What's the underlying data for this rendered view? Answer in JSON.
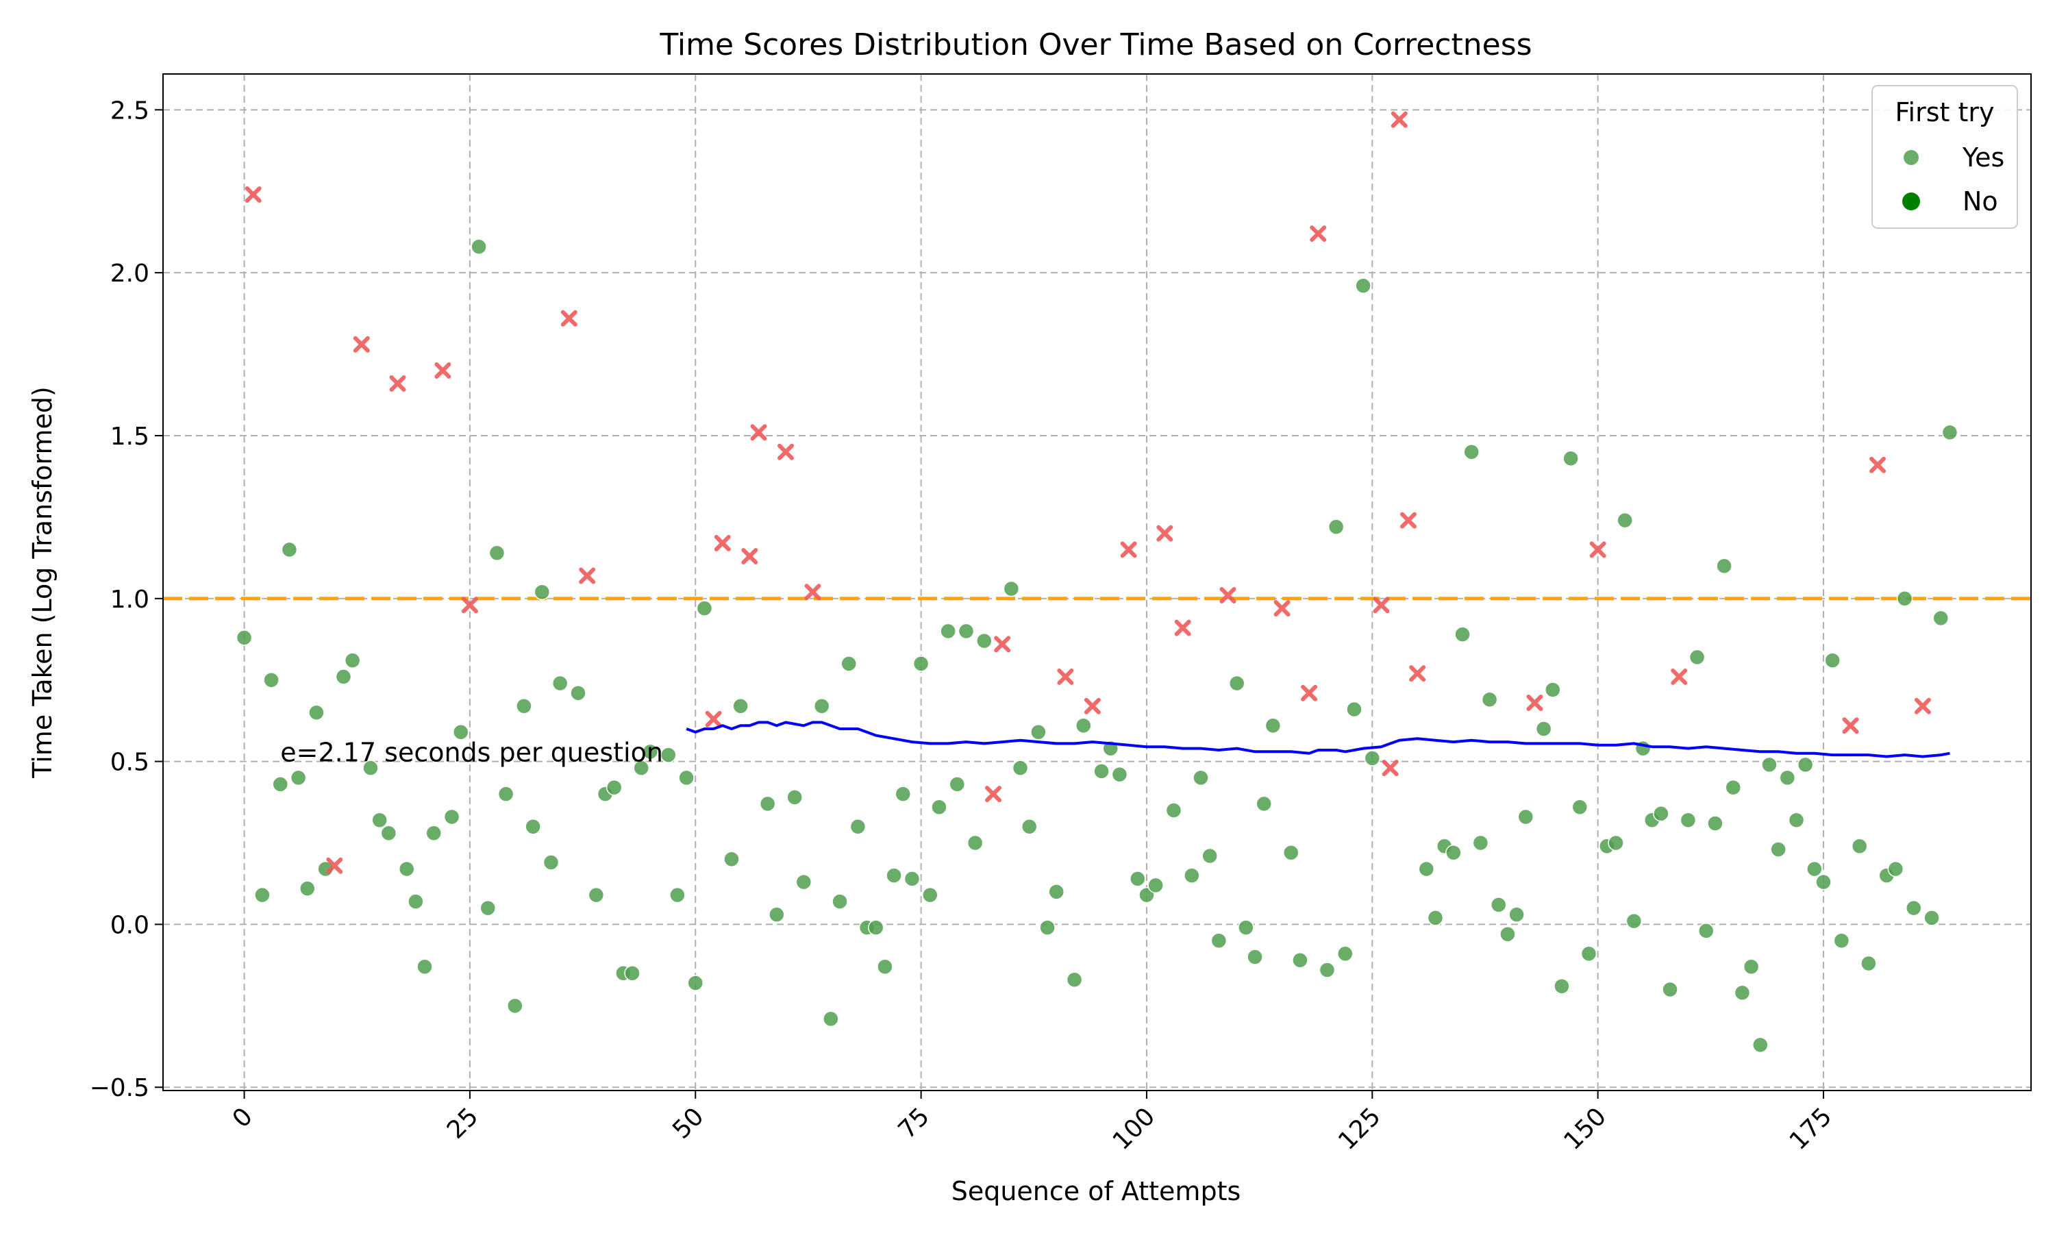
{
  "chart_data": {
    "type": "scatter",
    "title": "Time Scores Distribution Over Time Based on Correctness",
    "xlabel": "Sequence of Attempts",
    "ylabel": "Time Taken (Log Transformed)",
    "xlim": [
      -9,
      198
    ],
    "ylim": [
      -0.51,
      2.61
    ],
    "xticks": [
      0,
      25,
      50,
      75,
      100,
      125,
      150,
      175
    ],
    "yticks": [
      -0.5,
      0.0,
      0.5,
      1.0,
      1.5,
      2.0,
      2.5
    ],
    "ytick_labels": [
      "−0.5",
      "0.0",
      "0.5",
      "1.0",
      "1.5",
      "2.0",
      "2.5"
    ],
    "grid": true,
    "legend": {
      "title": "First try",
      "placement": "top-right",
      "entries": [
        {
          "label": "Yes",
          "color": "#5aa55a",
          "alpha": 0.9
        },
        {
          "label": "No",
          "color": "#008000",
          "alpha": 1.0
        }
      ]
    },
    "colors": {
      "correct": "#4f9f4f",
      "incorrect": "#f05a5a",
      "threshold": "#ffa500",
      "trend": "#0000ff"
    },
    "threshold_line": {
      "y": 1.0
    },
    "annotation": {
      "x": 4,
      "y": 0.5,
      "text": "e=2.17 seconds per question"
    },
    "series": [
      {
        "marker": "circle",
        "points": [
          [
            0,
            0.88
          ],
          [
            2,
            0.09
          ],
          [
            3,
            0.75
          ],
          [
            4,
            0.43
          ],
          [
            5,
            1.15
          ],
          [
            6,
            0.45
          ],
          [
            7,
            0.11
          ],
          [
            8,
            0.65
          ],
          [
            9,
            0.17
          ],
          [
            11,
            0.76
          ],
          [
            12,
            0.81
          ],
          [
            14,
            0.48
          ],
          [
            15,
            0.32
          ],
          [
            16,
            0.28
          ],
          [
            18,
            0.17
          ],
          [
            19,
            0.07
          ],
          [
            20,
            -0.13
          ],
          [
            21,
            0.28
          ],
          [
            23,
            0.33
          ],
          [
            24,
            0.59
          ],
          [
            26,
            2.08
          ],
          [
            27,
            0.05
          ],
          [
            28,
            1.14
          ],
          [
            29,
            0.4
          ],
          [
            30,
            -0.25
          ],
          [
            31,
            0.67
          ],
          [
            32,
            0.3
          ],
          [
            33,
            1.02
          ],
          [
            34,
            0.19
          ],
          [
            35,
            0.74
          ],
          [
            37,
            0.71
          ],
          [
            39,
            0.09
          ],
          [
            40,
            0.4
          ],
          [
            41,
            0.42
          ],
          [
            42,
            -0.15
          ],
          [
            43,
            -0.15
          ],
          [
            44,
            0.48
          ],
          [
            45,
            0.53
          ],
          [
            47,
            0.52
          ],
          [
            48,
            0.09
          ],
          [
            49,
            0.45
          ],
          [
            50,
            -0.18
          ],
          [
            51,
            0.97
          ],
          [
            54,
            0.2
          ],
          [
            55,
            0.67
          ],
          [
            58,
            0.37
          ],
          [
            59,
            0.03
          ],
          [
            61,
            0.39
          ],
          [
            62,
            0.13
          ],
          [
            64,
            0.67
          ],
          [
            65,
            -0.29
          ],
          [
            66,
            0.07
          ],
          [
            67,
            0.8
          ],
          [
            68,
            0.3
          ],
          [
            69,
            -0.01
          ],
          [
            70,
            -0.01
          ],
          [
            71,
            -0.13
          ],
          [
            72,
            0.15
          ],
          [
            73,
            0.4
          ],
          [
            74,
            0.14
          ],
          [
            75,
            0.8
          ],
          [
            76,
            0.09
          ],
          [
            77,
            0.36
          ],
          [
            78,
            0.9
          ],
          [
            79,
            0.43
          ],
          [
            80,
            0.9
          ],
          [
            81,
            0.25
          ],
          [
            82,
            0.87
          ],
          [
            85,
            1.03
          ],
          [
            86,
            0.48
          ],
          [
            87,
            0.3
          ],
          [
            88,
            0.59
          ],
          [
            89,
            -0.01
          ],
          [
            90,
            0.1
          ],
          [
            92,
            -0.17
          ],
          [
            93,
            0.61
          ],
          [
            95,
            0.47
          ],
          [
            96,
            0.54
          ],
          [
            97,
            0.46
          ],
          [
            99,
            0.14
          ],
          [
            100,
            0.09
          ],
          [
            101,
            0.12
          ],
          [
            103,
            0.35
          ],
          [
            105,
            0.15
          ],
          [
            106,
            0.45
          ],
          [
            107,
            0.21
          ],
          [
            108,
            -0.05
          ],
          [
            110,
            0.74
          ],
          [
            111,
            -0.01
          ],
          [
            112,
            -0.1
          ],
          [
            113,
            0.37
          ],
          [
            114,
            0.61
          ],
          [
            116,
            0.22
          ],
          [
            117,
            -0.11
          ],
          [
            120,
            -0.14
          ],
          [
            121,
            1.22
          ],
          [
            122,
            -0.09
          ],
          [
            123,
            0.66
          ],
          [
            124,
            1.96
          ],
          [
            125,
            0.51
          ],
          [
            131,
            0.17
          ],
          [
            132,
            0.02
          ],
          [
            133,
            0.24
          ],
          [
            134,
            0.22
          ],
          [
            135,
            0.89
          ],
          [
            136,
            1.45
          ],
          [
            137,
            0.25
          ],
          [
            138,
            0.69
          ],
          [
            139,
            0.06
          ],
          [
            140,
            -0.03
          ],
          [
            141,
            0.03
          ],
          [
            142,
            0.33
          ],
          [
            144,
            0.6
          ],
          [
            145,
            0.72
          ],
          [
            146,
            -0.19
          ],
          [
            147,
            1.43
          ],
          [
            148,
            0.36
          ],
          [
            149,
            -0.09
          ],
          [
            151,
            0.24
          ],
          [
            152,
            0.25
          ],
          [
            153,
            1.24
          ],
          [
            154,
            0.01
          ],
          [
            155,
            0.54
          ],
          [
            156,
            0.32
          ],
          [
            157,
            0.34
          ],
          [
            158,
            -0.2
          ],
          [
            160,
            0.32
          ],
          [
            161,
            0.82
          ],
          [
            162,
            -0.02
          ],
          [
            163,
            0.31
          ],
          [
            164,
            1.1
          ],
          [
            165,
            0.42
          ],
          [
            166,
            -0.21
          ],
          [
            167,
            -0.13
          ],
          [
            168,
            -0.37
          ],
          [
            169,
            0.49
          ],
          [
            170,
            0.23
          ],
          [
            171,
            0.45
          ],
          [
            172,
            0.32
          ],
          [
            173,
            0.49
          ],
          [
            174,
            0.17
          ],
          [
            175,
            0.13
          ],
          [
            176,
            0.81
          ],
          [
            177,
            -0.05
          ],
          [
            179,
            0.24
          ],
          [
            180,
            -0.12
          ],
          [
            182,
            0.15
          ],
          [
            183,
            0.17
          ],
          [
            184,
            1.0
          ],
          [
            185,
            0.05
          ],
          [
            187,
            0.02
          ],
          [
            188,
            0.94
          ],
          [
            189,
            1.51
          ]
        ]
      },
      {
        "marker": "x",
        "points": [
          [
            1,
            2.24
          ],
          [
            10,
            0.18
          ],
          [
            13,
            1.78
          ],
          [
            17,
            1.66
          ],
          [
            22,
            1.7
          ],
          [
            25,
            0.98
          ],
          [
            36,
            1.86
          ],
          [
            38,
            1.07
          ],
          [
            52,
            0.63
          ],
          [
            53,
            1.17
          ],
          [
            56,
            1.13
          ],
          [
            57,
            1.51
          ],
          [
            60,
            1.45
          ],
          [
            63,
            1.02
          ],
          [
            83,
            0.4
          ],
          [
            84,
            0.86
          ],
          [
            91,
            0.76
          ],
          [
            94,
            0.67
          ],
          [
            98,
            1.15
          ],
          [
            102,
            1.2
          ],
          [
            104,
            0.91
          ],
          [
            109,
            1.01
          ],
          [
            115,
            0.97
          ],
          [
            118,
            0.71
          ],
          [
            119,
            2.12
          ],
          [
            126,
            0.98
          ],
          [
            127,
            0.48
          ],
          [
            128,
            2.47
          ],
          [
            129,
            1.24
          ],
          [
            130,
            0.77
          ],
          [
            143,
            0.68
          ],
          [
            150,
            1.15
          ],
          [
            159,
            0.76
          ],
          [
            178,
            0.61
          ],
          [
            181,
            1.41
          ],
          [
            186,
            0.67
          ]
        ]
      },
      {
        "type": "line",
        "points": [
          [
            49,
            0.6
          ],
          [
            50,
            0.59
          ],
          [
            51,
            0.6
          ],
          [
            52,
            0.6
          ],
          [
            53,
            0.61
          ],
          [
            54,
            0.6
          ],
          [
            55,
            0.61
          ],
          [
            56,
            0.61
          ],
          [
            57,
            0.62
          ],
          [
            58,
            0.62
          ],
          [
            59,
            0.61
          ],
          [
            60,
            0.62
          ],
          [
            62,
            0.61
          ],
          [
            63,
            0.62
          ],
          [
            64,
            0.62
          ],
          [
            65,
            0.61
          ],
          [
            66,
            0.6
          ],
          [
            68,
            0.6
          ],
          [
            70,
            0.58
          ],
          [
            72,
            0.57
          ],
          [
            74,
            0.56
          ],
          [
            76,
            0.555
          ],
          [
            78,
            0.555
          ],
          [
            80,
            0.56
          ],
          [
            82,
            0.555
          ],
          [
            84,
            0.56
          ],
          [
            86,
            0.565
          ],
          [
            88,
            0.56
          ],
          [
            90,
            0.555
          ],
          [
            92,
            0.555
          ],
          [
            94,
            0.56
          ],
          [
            96,
            0.555
          ],
          [
            98,
            0.55
          ],
          [
            100,
            0.545
          ],
          [
            102,
            0.545
          ],
          [
            104,
            0.54
          ],
          [
            106,
            0.54
          ],
          [
            108,
            0.535
          ],
          [
            110,
            0.54
          ],
          [
            112,
            0.53
          ],
          [
            114,
            0.53
          ],
          [
            116,
            0.53
          ],
          [
            118,
            0.525
          ],
          [
            119,
            0.535
          ],
          [
            120,
            0.535
          ],
          [
            121,
            0.535
          ],
          [
            122,
            0.53
          ],
          [
            123,
            0.535
          ],
          [
            124,
            0.54
          ],
          [
            126,
            0.545
          ],
          [
            127,
            0.555
          ],
          [
            128,
            0.565
          ],
          [
            130,
            0.57
          ],
          [
            132,
            0.565
          ],
          [
            134,
            0.56
          ],
          [
            136,
            0.565
          ],
          [
            138,
            0.56
          ],
          [
            140,
            0.56
          ],
          [
            142,
            0.555
          ],
          [
            144,
            0.555
          ],
          [
            146,
            0.555
          ],
          [
            148,
            0.555
          ],
          [
            150,
            0.55
          ],
          [
            152,
            0.55
          ],
          [
            154,
            0.555
          ],
          [
            156,
            0.545
          ],
          [
            158,
            0.545
          ],
          [
            160,
            0.54
          ],
          [
            162,
            0.545
          ],
          [
            164,
            0.54
          ],
          [
            166,
            0.535
          ],
          [
            168,
            0.53
          ],
          [
            170,
            0.53
          ],
          [
            172,
            0.525
          ],
          [
            174,
            0.525
          ],
          [
            176,
            0.52
          ],
          [
            178,
            0.52
          ],
          [
            180,
            0.52
          ],
          [
            182,
            0.515
          ],
          [
            184,
            0.52
          ],
          [
            186,
            0.515
          ],
          [
            188,
            0.52
          ],
          [
            189,
            0.525
          ]
        ]
      }
    ]
  }
}
